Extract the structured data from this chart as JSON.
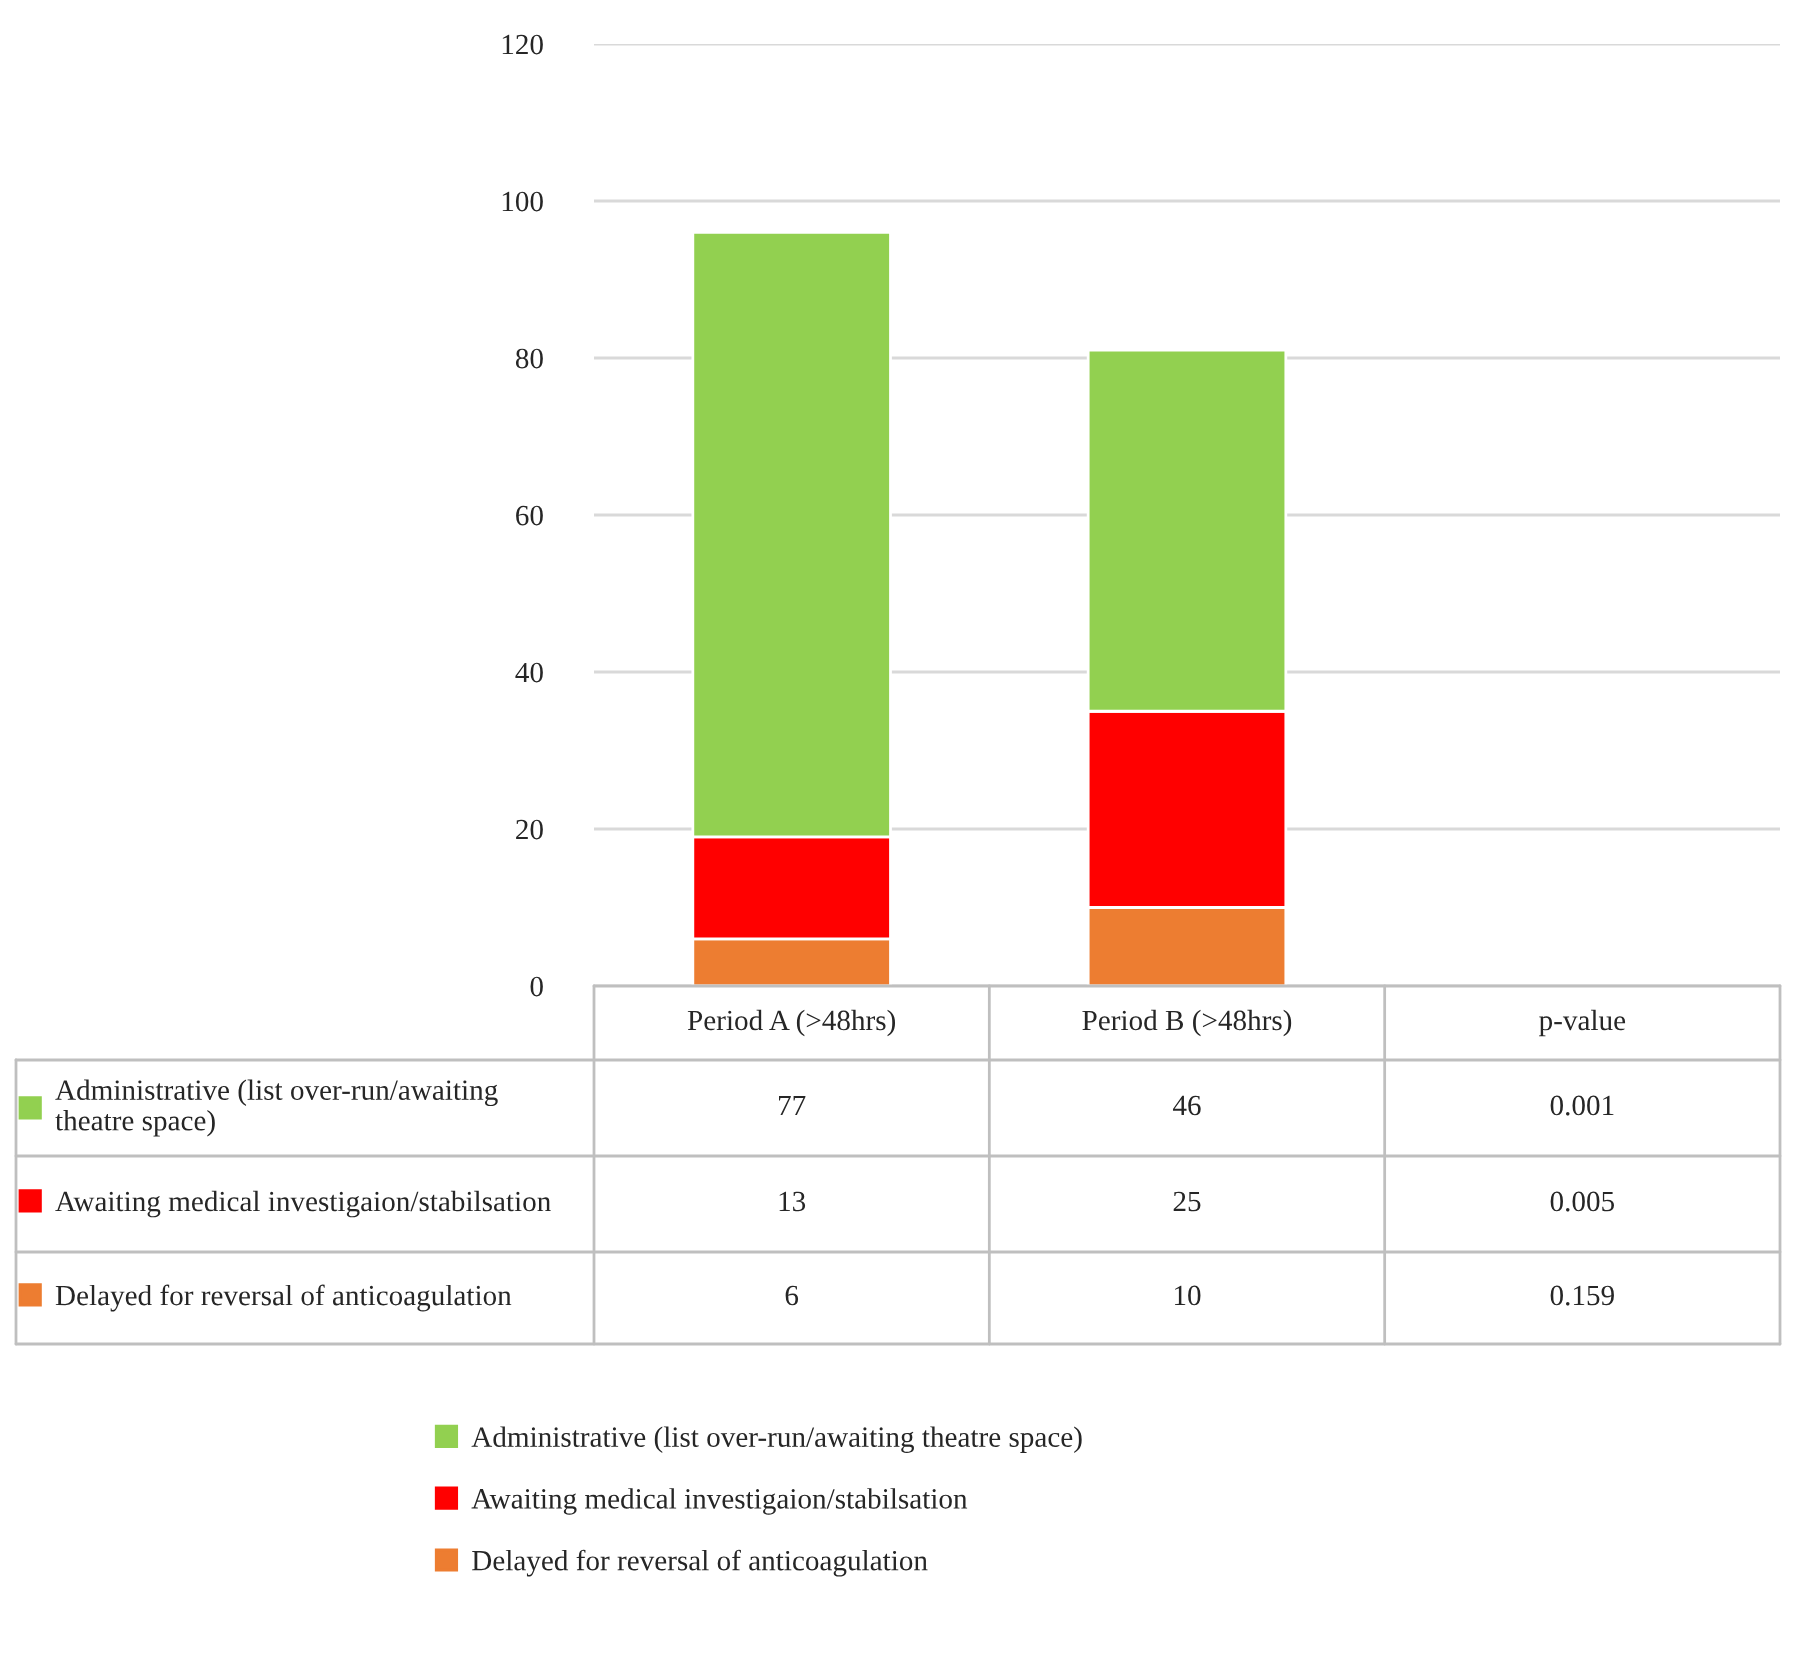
{
  "chart_data": {
    "type": "bar",
    "stacked": true,
    "categories": [
      "Period A (>48hrs)",
      "Period B (>48hrs)",
      "p-value"
    ],
    "series": [
      {
        "name": "Delayed for reversal of anticoagulation",
        "color": "#ed7d31",
        "values": [
          6,
          10,
          null
        ],
        "value_labels": [
          "6",
          "10",
          "0.159"
        ]
      },
      {
        "name": "Awaiting medical investigaion/stabilsation",
        "color": "#ff0000",
        "values": [
          13,
          25,
          null
        ],
        "value_labels": [
          "13",
          "25",
          "0.005"
        ]
      },
      {
        "name": "Administrative (list over-run/awaiting theatre space)",
        "color": "#92d050",
        "values": [
          77,
          46,
          null
        ],
        "value_labels": [
          "77",
          "46",
          "0.001"
        ]
      }
    ],
    "ylim": [
      0,
      120
    ],
    "yticks": [
      0,
      20,
      40,
      60,
      80,
      100,
      120
    ],
    "grid": "y",
    "legend": "bottom"
  }
}
